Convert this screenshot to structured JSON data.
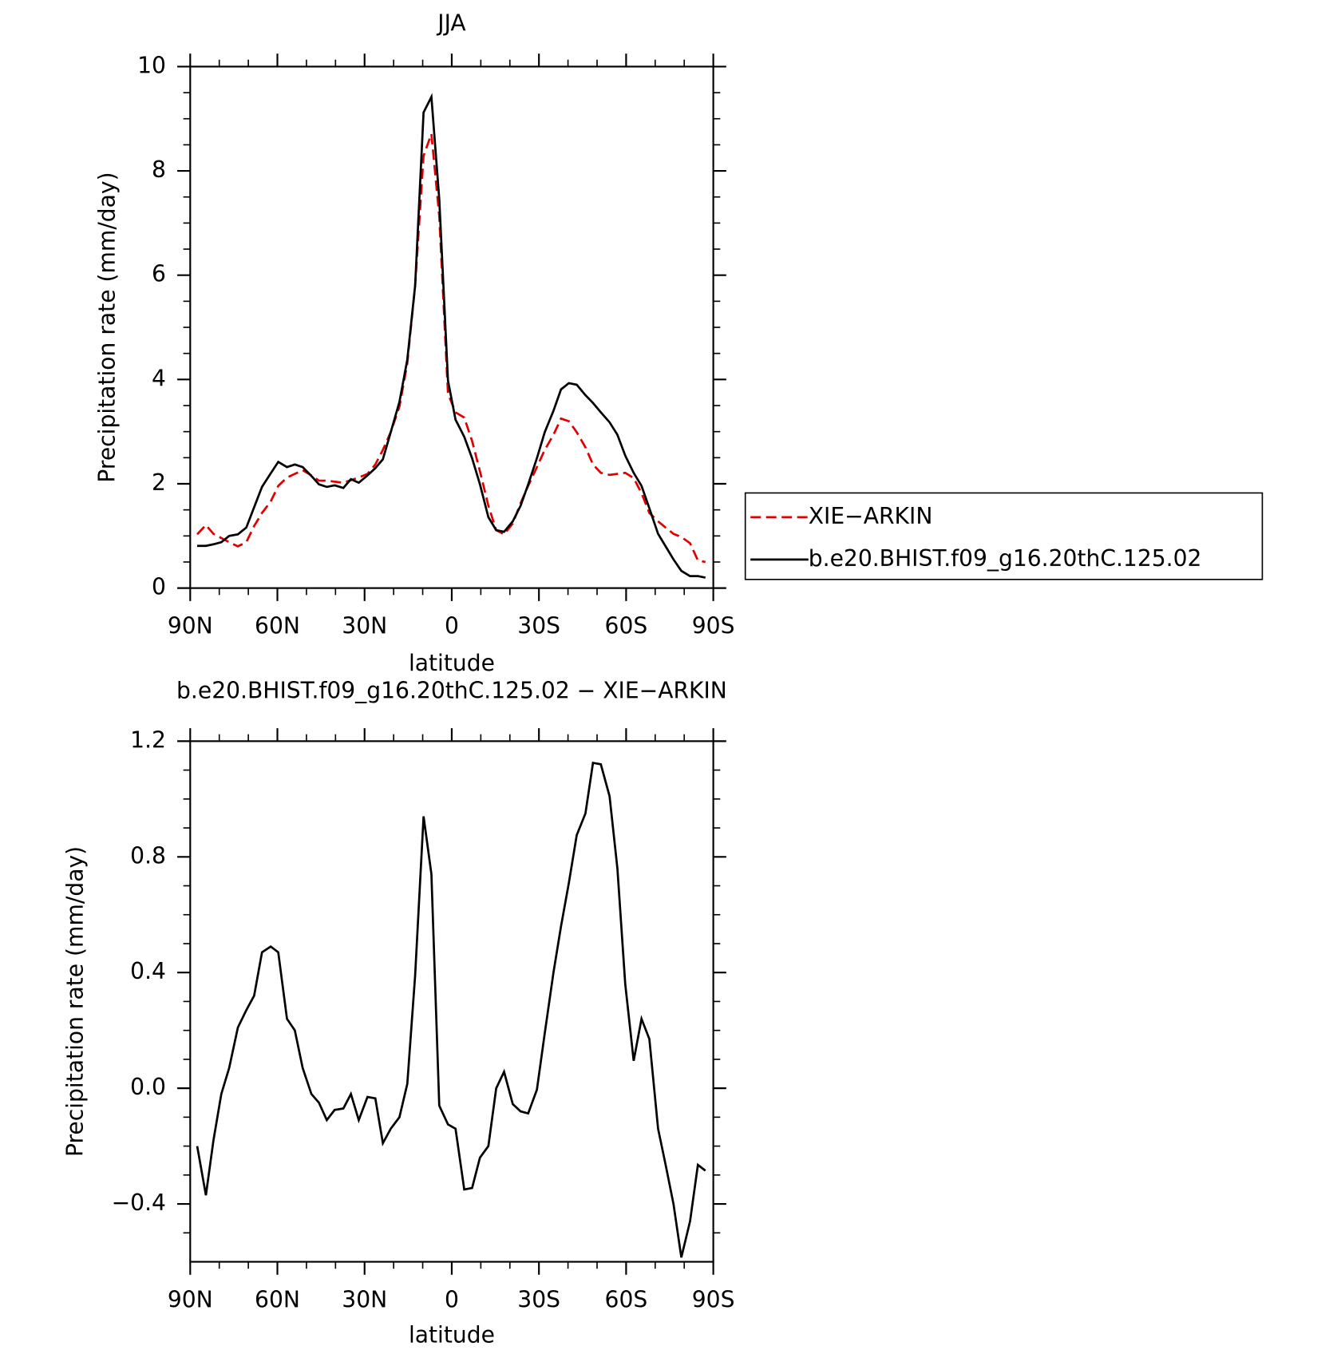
{
  "chart_data": [
    {
      "type": "line",
      "title": "JJA",
      "xlabel": "latitude",
      "ylabel": "Precipitation rate (mm/day)",
      "x": [
        87.6,
        84.6,
        82.0,
        79.3,
        76.6,
        73.6,
        70.7,
        68.0,
        65.3,
        62.3,
        59.7,
        56.7,
        54.0,
        51.3,
        48.3,
        45.7,
        43.0,
        40.3,
        37.3,
        34.7,
        32.0,
        29.0,
        26.3,
        23.7,
        21.0,
        18.0,
        15.3,
        12.6,
        9.7,
        7.0,
        4.3,
        1.3,
        -1.3,
        -4.3,
        -7.0,
        -9.7,
        -12.6,
        -15.3,
        -18.0,
        -21.0,
        -23.7,
        -26.3,
        -29.3,
        -32.0,
        -35.0,
        -37.6,
        -40.3,
        -43.0,
        -46.0,
        -48.6,
        -51.3,
        -54.3,
        -57.0,
        -59.7,
        -62.6,
        -65.3,
        -68.0,
        -71.0,
        -73.6,
        -76.3,
        -79.0,
        -82.0,
        -84.7,
        -87.3
      ],
      "series": [
        {
          "name": "XIE−ARKIN",
          "color": "#e00000",
          "dash": true,
          "values": [
            1.03,
            1.21,
            1.04,
            0.96,
            0.88,
            0.8,
            0.88,
            1.19,
            1.44,
            1.66,
            1.96,
            2.12,
            2.19,
            2.26,
            2.16,
            2.06,
            2.06,
            2.04,
            2.02,
            2.07,
            2.12,
            2.19,
            2.37,
            2.65,
            2.99,
            3.48,
            4.31,
            5.8,
            8.29,
            8.71,
            7.13,
            3.73,
            3.37,
            3.27,
            2.82,
            2.24,
            1.58,
            1.11,
            1.03,
            1.24,
            1.63,
            1.96,
            2.32,
            2.65,
            2.94,
            3.25,
            3.2,
            2.99,
            2.7,
            2.37,
            2.21,
            2.17,
            2.19,
            2.21,
            2.11,
            1.82,
            1.44,
            1.28,
            1.16,
            1.04,
            0.98,
            0.86,
            0.53,
            0.5
          ]
        },
        {
          "name": "b.e20.BHIST.f09_g16.20thC.125.02",
          "color": "#000000",
          "dash": false,
          "values": [
            0.81,
            0.81,
            0.84,
            0.88,
            1.0,
            1.03,
            1.16,
            1.55,
            1.94,
            2.2,
            2.42,
            2.32,
            2.37,
            2.32,
            2.15,
            1.99,
            1.94,
            1.97,
            1.92,
            2.09,
            2.02,
            2.16,
            2.3,
            2.47,
            2.99,
            3.57,
            4.38,
            5.8,
            9.12,
            9.42,
            7.46,
            3.98,
            3.23,
            2.9,
            2.49,
            1.99,
            1.36,
            1.11,
            1.08,
            1.28,
            1.58,
            1.99,
            2.49,
            2.99,
            3.4,
            3.81,
            3.93,
            3.9,
            3.7,
            3.55,
            3.37,
            3.18,
            2.94,
            2.54,
            2.21,
            1.96,
            1.53,
            1.04,
            0.8,
            0.55,
            0.33,
            0.23,
            0.23,
            0.2
          ]
        }
      ],
      "xlim": [
        90,
        -90
      ],
      "xticks": [
        {
          "value": 90,
          "label": "90N"
        },
        {
          "value": 60,
          "label": "60N"
        },
        {
          "value": 30,
          "label": "30N"
        },
        0,
        {
          "value": -30,
          "label": "30S"
        },
        {
          "value": -60,
          "label": "60S"
        },
        {
          "value": -90,
          "label": "90S"
        }
      ],
      "ylim": [
        0,
        10
      ],
      "yticks": [
        0,
        2,
        4,
        6,
        8,
        10
      ],
      "legend": "right"
    },
    {
      "type": "line",
      "title": "b.e20.BHIST.f09_g16.20thC.125.02 − XIE−ARKIN",
      "xlabel": "latitude",
      "ylabel": "Precipitation rate (mm/day)",
      "x": [
        87.6,
        84.6,
        82.0,
        79.3,
        76.6,
        73.6,
        70.7,
        68.0,
        65.3,
        62.3,
        59.7,
        56.7,
        54.0,
        51.3,
        48.3,
        45.7,
        43.0,
        40.3,
        37.3,
        34.7,
        32.0,
        29.0,
        26.3,
        23.7,
        21.0,
        18.0,
        15.3,
        12.6,
        9.7,
        7.0,
        4.3,
        1.3,
        -1.3,
        -4.3,
        -7.0,
        -9.7,
        -12.6,
        -15.3,
        -18.0,
        -21.0,
        -23.7,
        -26.3,
        -29.3,
        -32.0,
        -35.0,
        -37.6,
        -40.3,
        -43.0,
        -46.0,
        -48.6,
        -51.3,
        -54.3,
        -57.0,
        -59.7,
        -62.6,
        -65.3,
        -68.0,
        -71.0,
        -73.6,
        -76.3,
        -79.0,
        -82.0,
        -84.7,
        -87.3
      ],
      "series": [
        {
          "color": "#000000",
          "dash": false,
          "values": [
            -0.2,
            -0.37,
            -0.18,
            -0.02,
            0.07,
            0.21,
            0.27,
            0.32,
            0.47,
            0.49,
            0.47,
            0.24,
            0.2,
            0.07,
            -0.02,
            -0.05,
            -0.11,
            -0.075,
            -0.07,
            -0.02,
            -0.11,
            -0.03,
            -0.035,
            -0.19,
            -0.14,
            -0.1,
            0.015,
            0.39,
            0.94,
            0.74,
            -0.06,
            -0.125,
            -0.14,
            -0.35,
            -0.345,
            -0.24,
            -0.2,
            0.0,
            0.057,
            -0.055,
            -0.08,
            -0.087,
            -0.005,
            0.19,
            0.4,
            0.56,
            0.71,
            0.875,
            0.95,
            1.125,
            1.12,
            1.01,
            0.76,
            0.36,
            0.095,
            0.24,
            0.17,
            -0.14,
            -0.265,
            -0.4,
            -0.585,
            -0.46,
            -0.265,
            -0.285
          ]
        }
      ],
      "xlim": [
        90,
        -90
      ],
      "xticks": [
        {
          "value": 90,
          "label": "90N"
        },
        {
          "value": 60,
          "label": "60N"
        },
        {
          "value": 30,
          "label": "30N"
        },
        0,
        {
          "value": -30,
          "label": "30S"
        },
        {
          "value": -60,
          "label": "60S"
        },
        {
          "value": -90,
          "label": "90S"
        }
      ],
      "ylim": [
        -0.6,
        1.2
      ],
      "yticks": [
        {
          "value": -0.4,
          "label": "−0.4"
        },
        {
          "value": 0,
          "label": "0.0"
        },
        0.4,
        0.8,
        1.2
      ]
    }
  ]
}
